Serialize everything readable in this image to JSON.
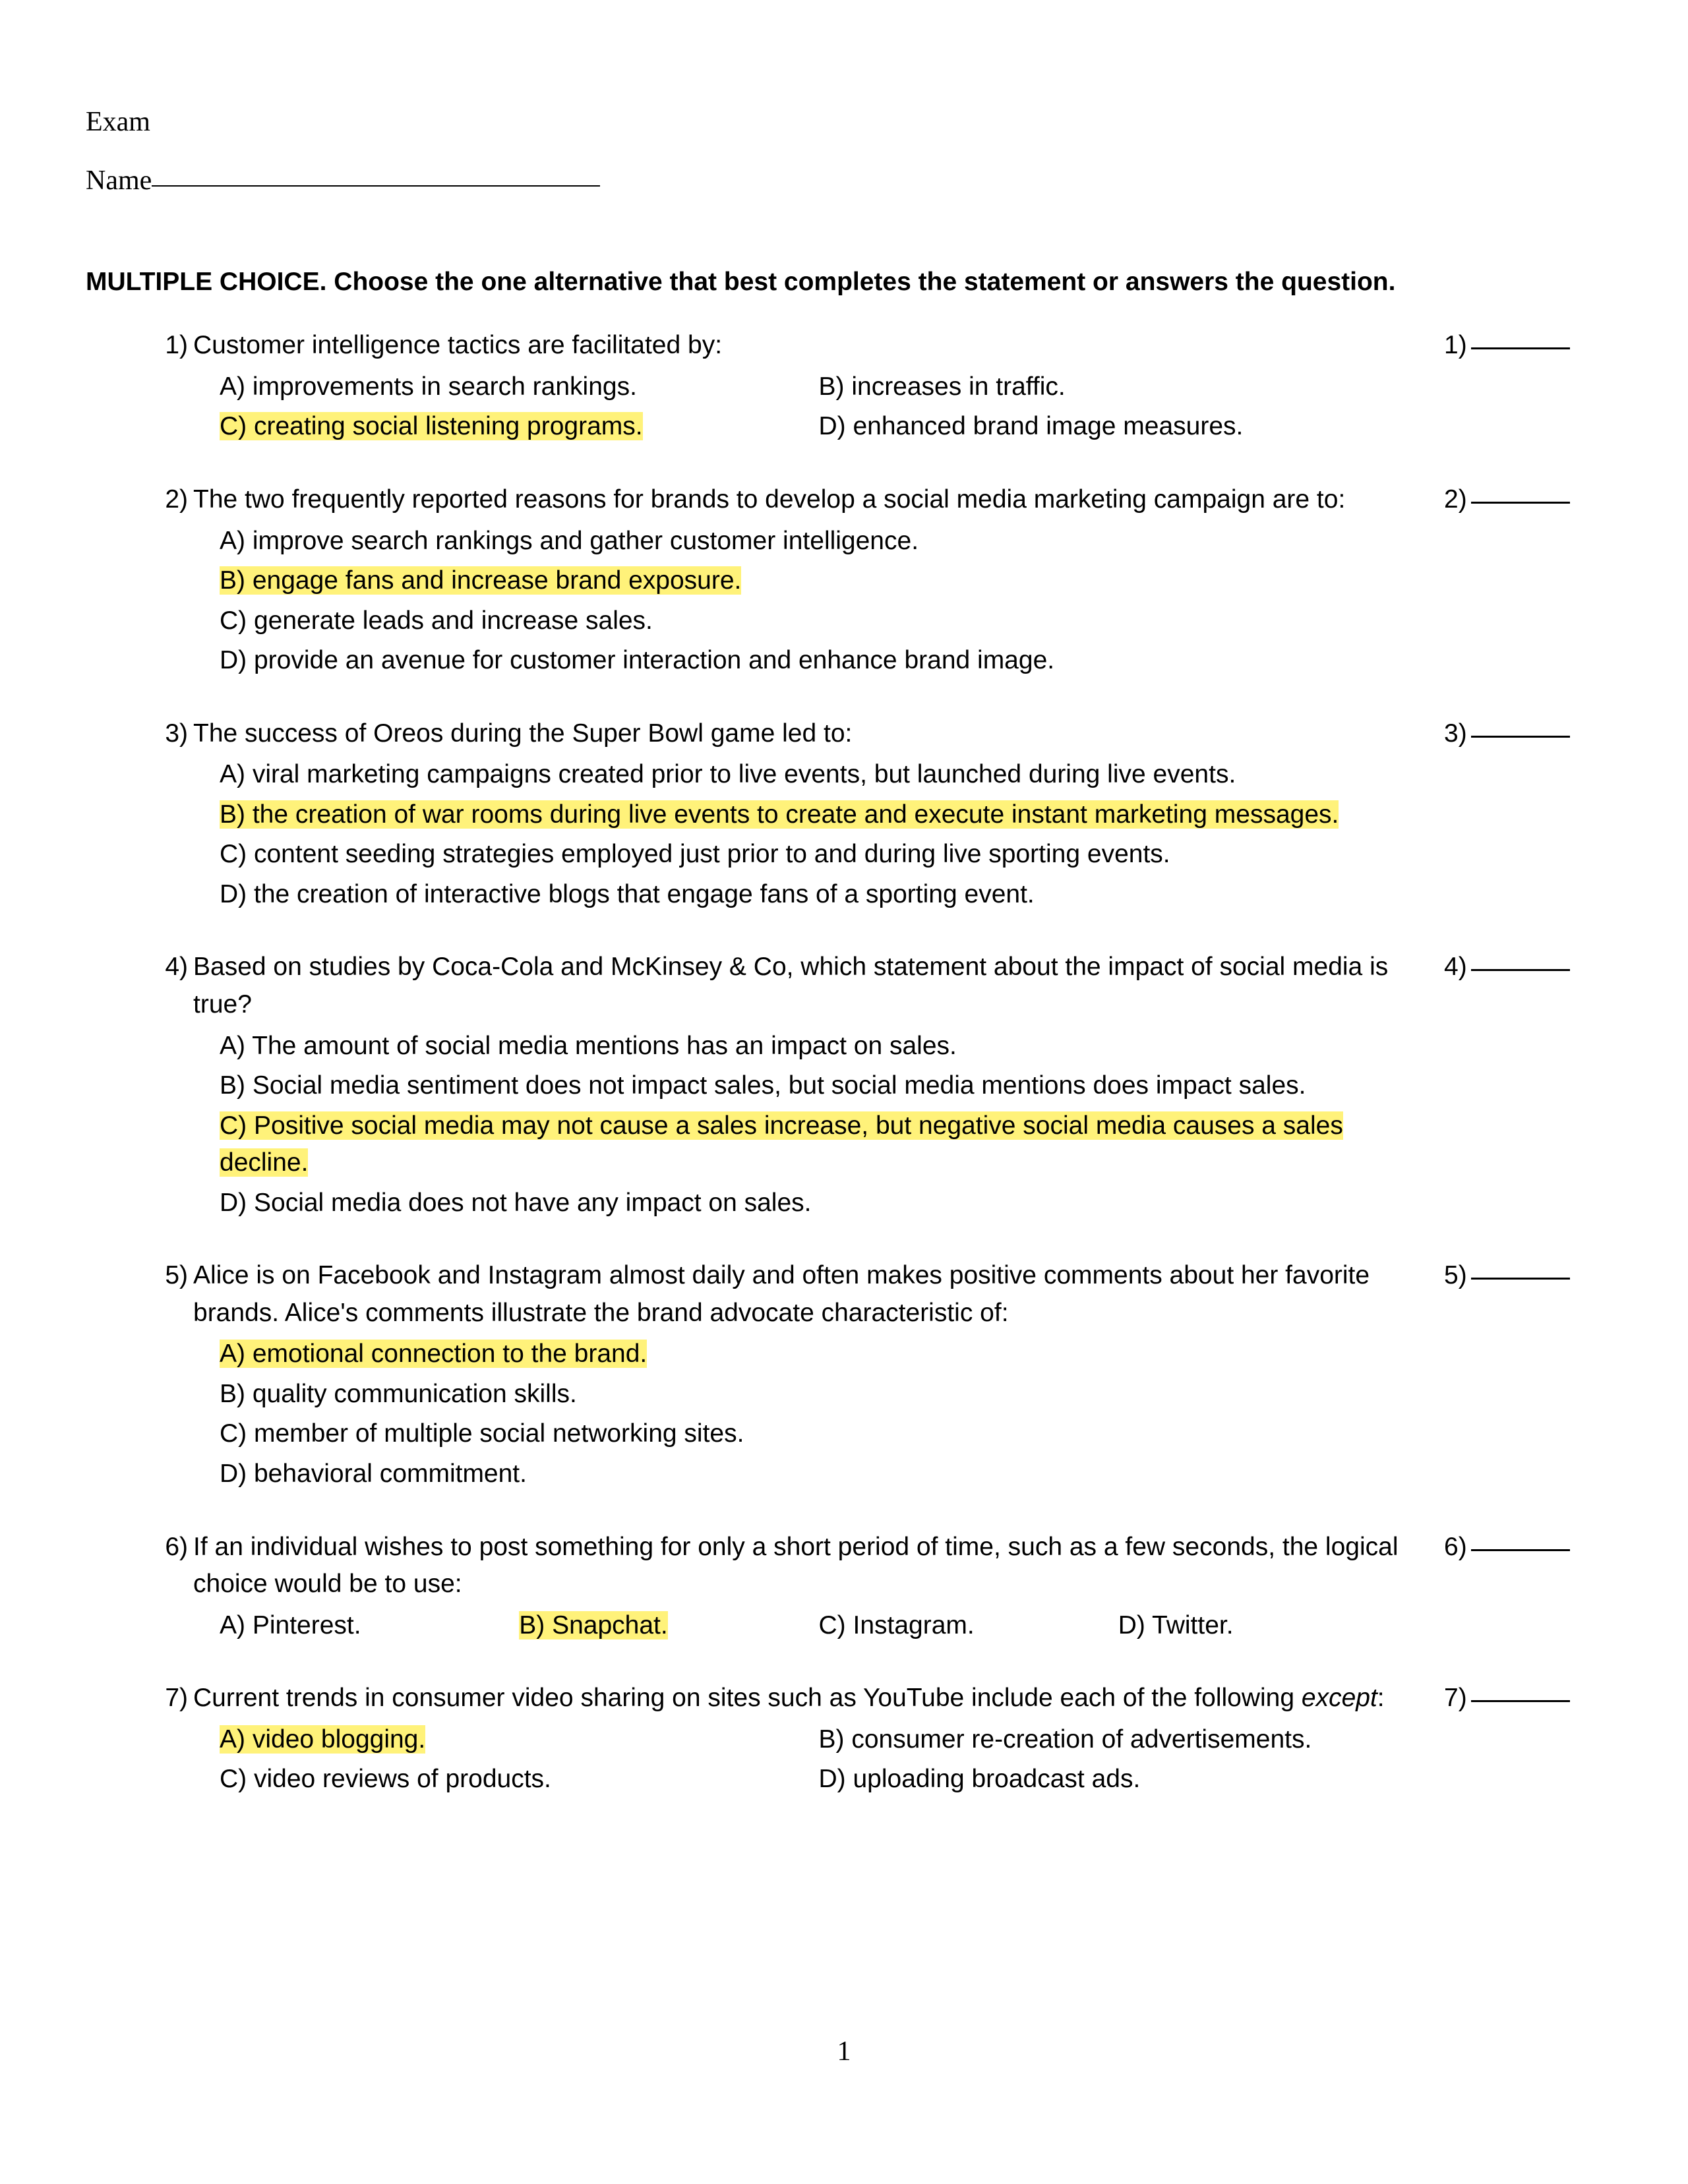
{
  "highlight_color": "#fff27a",
  "header": {
    "exam_label": "Exam",
    "name_label": "Name"
  },
  "section": {
    "lead": "MULTIPLE CHOICE.",
    "rest": "  Choose the one alternative that best completes the statement or answers the question."
  },
  "questions": [
    {
      "num": "1)",
      "stem": "Customer intelligence tactics are facilitated by:",
      "layout": "2col",
      "options": [
        {
          "label": "A)",
          "text": "improvements in search rankings.",
          "hl": false
        },
        {
          "label": "B)",
          "text": "increases in traffic.",
          "hl": false
        },
        {
          "label": "C)",
          "text": "creating social listening programs.",
          "hl": true
        },
        {
          "label": "D)",
          "text": "enhanced brand image measures.",
          "hl": false
        }
      ],
      "answer_num": "1)"
    },
    {
      "num": "2)",
      "stem": "The two frequently reported reasons for brands to develop a social media marketing campaign are to:",
      "layout": "1col",
      "options": [
        {
          "label": "A)",
          "text": "improve search rankings and gather customer intelligence.",
          "hl": false
        },
        {
          "label": "B)",
          "text": "engage fans and increase brand exposure.",
          "hl": true
        },
        {
          "label": "C)",
          "text": "generate leads and increase sales.",
          "hl": false
        },
        {
          "label": "D)",
          "text": "provide an avenue for customer interaction and enhance brand image.",
          "hl": false
        }
      ],
      "answer_num": "2)"
    },
    {
      "num": "3)",
      "stem": "The success of Oreos during the Super Bowl game led to:",
      "layout": "1col",
      "options": [
        {
          "label": "A)",
          "text": "viral marketing campaigns created prior to live events, but launched during live events.",
          "hl": false
        },
        {
          "label": "B)",
          "text": "the creation of war rooms during live events to create and execute instant marketing messages.",
          "hl": true
        },
        {
          "label": "C)",
          "text": "content seeding strategies employed just prior to and during live sporting events.",
          "hl": false
        },
        {
          "label": "D)",
          "text": "the creation of interactive blogs that engage fans of a sporting event.",
          "hl": false
        }
      ],
      "answer_num": "3)"
    },
    {
      "num": "4)",
      "stem": "Based on studies by Coca-Cola and McKinsey & Co, which statement about the impact of social media is true?",
      "layout": "1col",
      "options": [
        {
          "label": "A)",
          "text": "The amount of social media mentions has an impact on sales.",
          "hl": false
        },
        {
          "label": "B)",
          "text": "Social media sentiment does not impact sales, but social media mentions does impact sales.",
          "hl": false
        },
        {
          "label": "C)",
          "text": "Positive social media may not cause a sales increase, but negative social media causes a sales decline.",
          "hl": true
        },
        {
          "label": "D)",
          "text": "Social media does not have any impact on sales.",
          "hl": false
        }
      ],
      "answer_num": "4)"
    },
    {
      "num": "5)",
      "stem": "Alice is on Facebook and Instagram almost daily and often makes positive comments about her favorite brands. Alice's comments illustrate the brand advocate characteristic of:",
      "layout": "1col",
      "options": [
        {
          "label": "A)",
          "text": "emotional connection to the brand.",
          "hl": true
        },
        {
          "label": "B)",
          "text": "quality communication skills.",
          "hl": false
        },
        {
          "label": "C)",
          "text": "member of multiple social networking sites.",
          "hl": false
        },
        {
          "label": "D)",
          "text": "behavioral commitment.",
          "hl": false
        }
      ],
      "answer_num": "5)"
    },
    {
      "num": "6)",
      "stem": "If an individual wishes to post something for only a short period of time, such as a few seconds, the logical choice would be to use:",
      "layout": "4col",
      "options": [
        {
          "label": "A)",
          "text": "Pinterest.",
          "hl": false
        },
        {
          "label": "B)",
          "text": "Snapchat.",
          "hl": true
        },
        {
          "label": "C)",
          "text": "Instagram.",
          "hl": false
        },
        {
          "label": "D)",
          "text": "Twitter.",
          "hl": false
        }
      ],
      "answer_num": "6)"
    },
    {
      "num": "7)",
      "stem_html": "Current trends in consumer video sharing on sites such as YouTube include each of the following <span class=\"italic\">except</span>:",
      "layout": "2col",
      "options": [
        {
          "label": "A)",
          "text": "video blogging.",
          "hl": true
        },
        {
          "label": "B)",
          "text": "consumer re-creation of advertisements.",
          "hl": false
        },
        {
          "label": "C)",
          "text": "video reviews of products.",
          "hl": false
        },
        {
          "label": "D)",
          "text": "uploading broadcast ads.",
          "hl": false
        }
      ],
      "answer_num": "7)"
    }
  ],
  "page_number": "1"
}
